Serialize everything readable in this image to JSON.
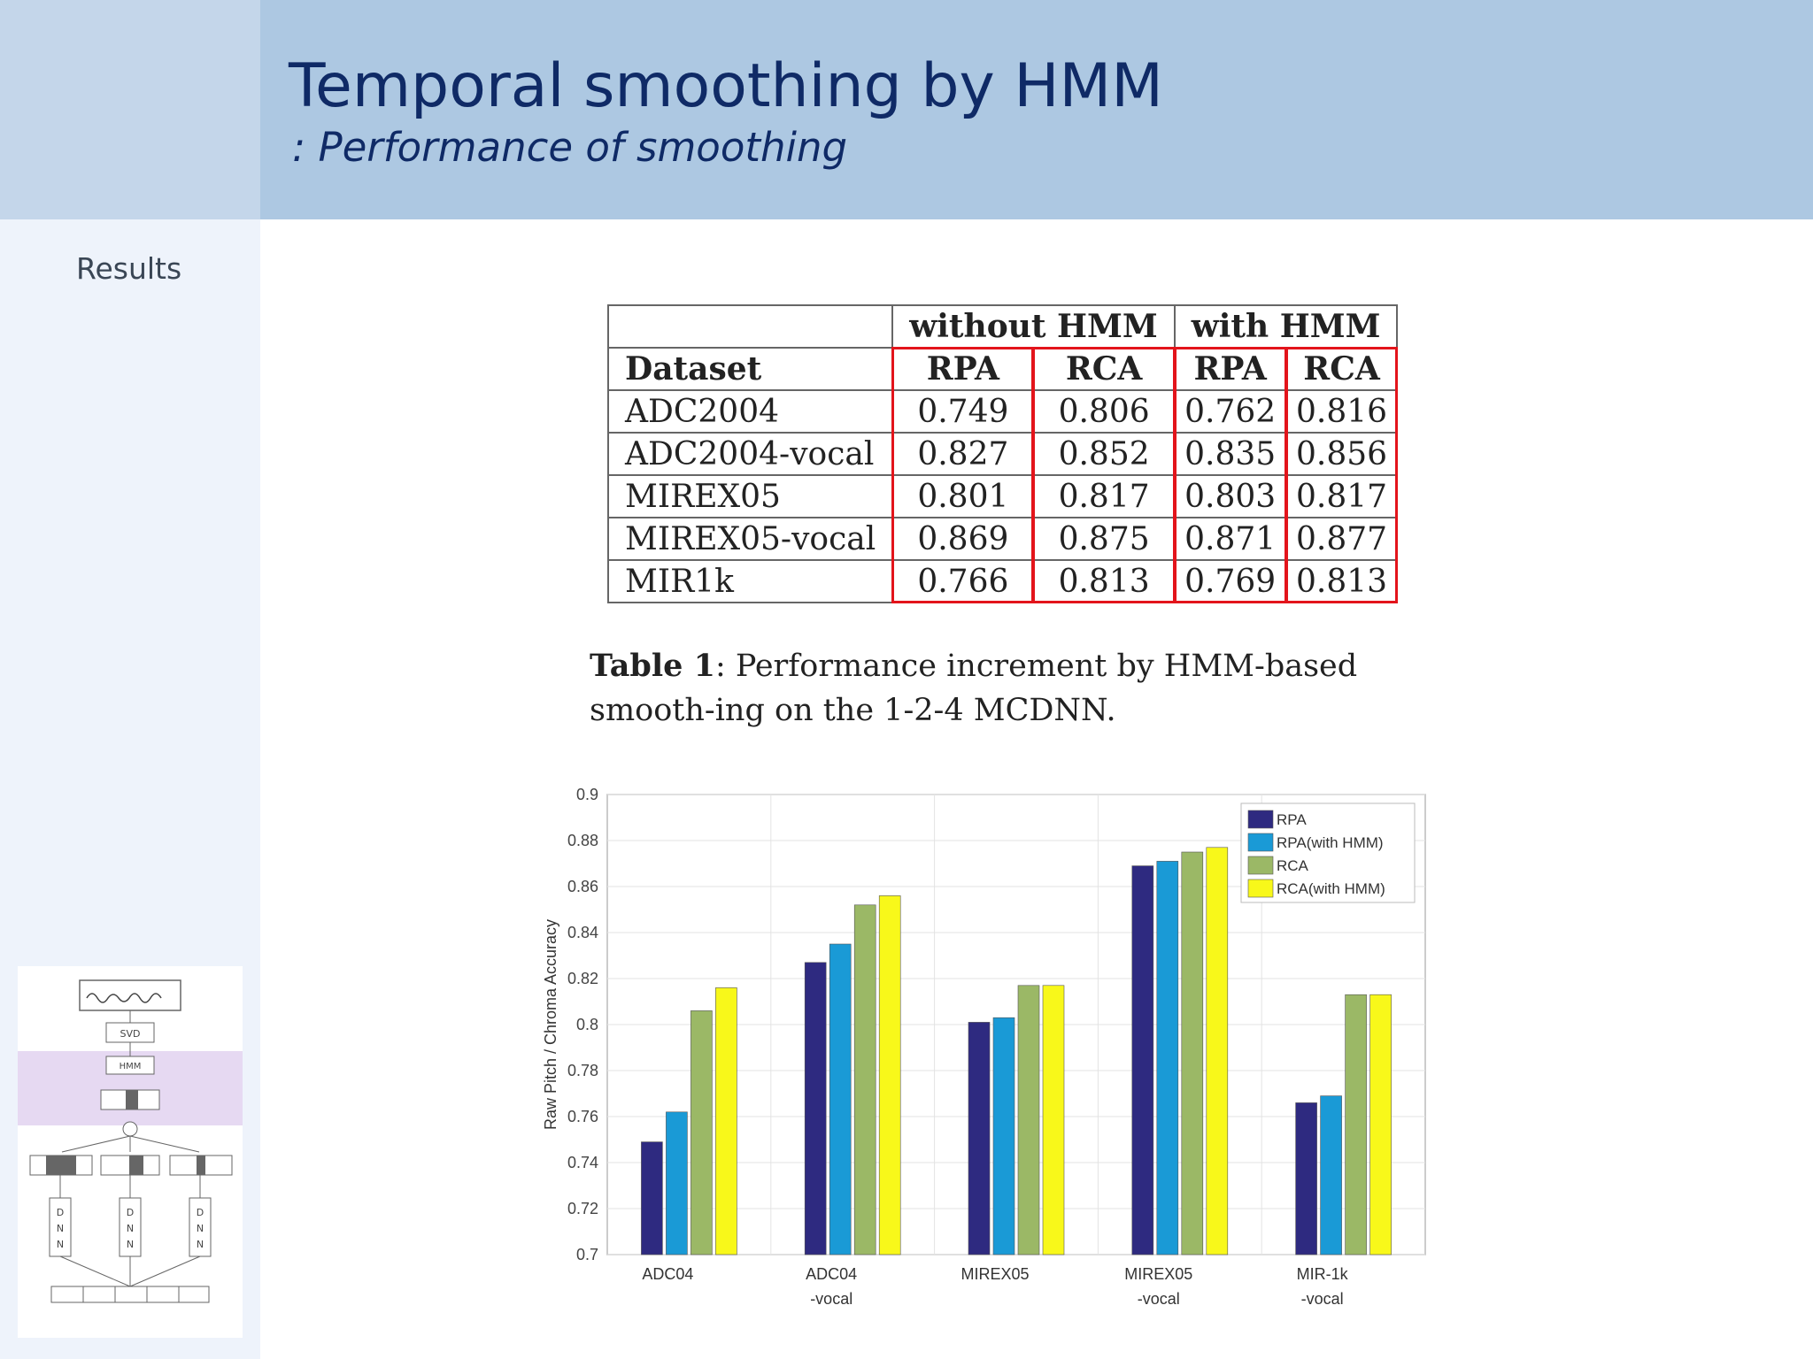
{
  "header": {
    "title": "Temporal smoothing by HMM",
    "subtitle": ": Performance of smoothing"
  },
  "sidebar": {
    "section": "Results"
  },
  "thumbnail": {
    "svd_label": "SVD",
    "hmm_label": "HMM",
    "dnn_label": "DNN"
  },
  "table": {
    "group_headers": [
      "without HMM",
      "with HMM"
    ],
    "col_headers": [
      "Dataset",
      "RPA",
      "RCA",
      "RPA",
      "RCA"
    ],
    "rows": [
      [
        "ADC2004",
        "0.749",
        "0.806",
        "0.762",
        "0.816"
      ],
      [
        "ADC2004-vocal",
        "0.827",
        "0.852",
        "0.835",
        "0.856"
      ],
      [
        "MIREX05",
        "0.801",
        "0.817",
        "0.803",
        "0.817"
      ],
      [
        "MIREX05-vocal",
        "0.869",
        "0.875",
        "0.871",
        "0.877"
      ],
      [
        "MIR1k",
        "0.766",
        "0.813",
        "0.769",
        "0.813"
      ]
    ]
  },
  "caption": {
    "label": "Table 1",
    "text": ": Performance increment by HMM-based smooth-ing on the 1-2-4 MCDNN."
  },
  "chart_data": {
    "type": "bar",
    "categories": [
      [
        "ADC04"
      ],
      [
        "ADC04",
        "-vocal"
      ],
      [
        "MIREX05"
      ],
      [
        "MIREX05",
        "-vocal"
      ],
      [
        "MIR-1k",
        "-vocal"
      ]
    ],
    "series": [
      {
        "name": "RPA",
        "color": "#2e2a80",
        "values": [
          0.749,
          0.827,
          0.801,
          0.869,
          0.766
        ]
      },
      {
        "name": "RPA(with HMM)",
        "color": "#1a9ad6",
        "values": [
          0.762,
          0.835,
          0.803,
          0.871,
          0.769
        ]
      },
      {
        "name": "RCA",
        "color": "#9bb866",
        "values": [
          0.806,
          0.852,
          0.817,
          0.875,
          0.813
        ]
      },
      {
        "name": "RCA(with HMM)",
        "color": "#f8f81a",
        "values": [
          0.816,
          0.856,
          0.817,
          0.877,
          0.813
        ]
      }
    ],
    "ylabel": "Raw Pitch / Chroma Accuracy",
    "xlabel": "",
    "ylim": [
      0.7,
      0.9
    ],
    "yticks": [
      "0.7",
      "0.72",
      "0.74",
      "0.76",
      "0.78",
      "0.8",
      "0.82",
      "0.84",
      "0.86",
      "0.88",
      "0.9"
    ],
    "grid": true,
    "legend": "top-right"
  }
}
